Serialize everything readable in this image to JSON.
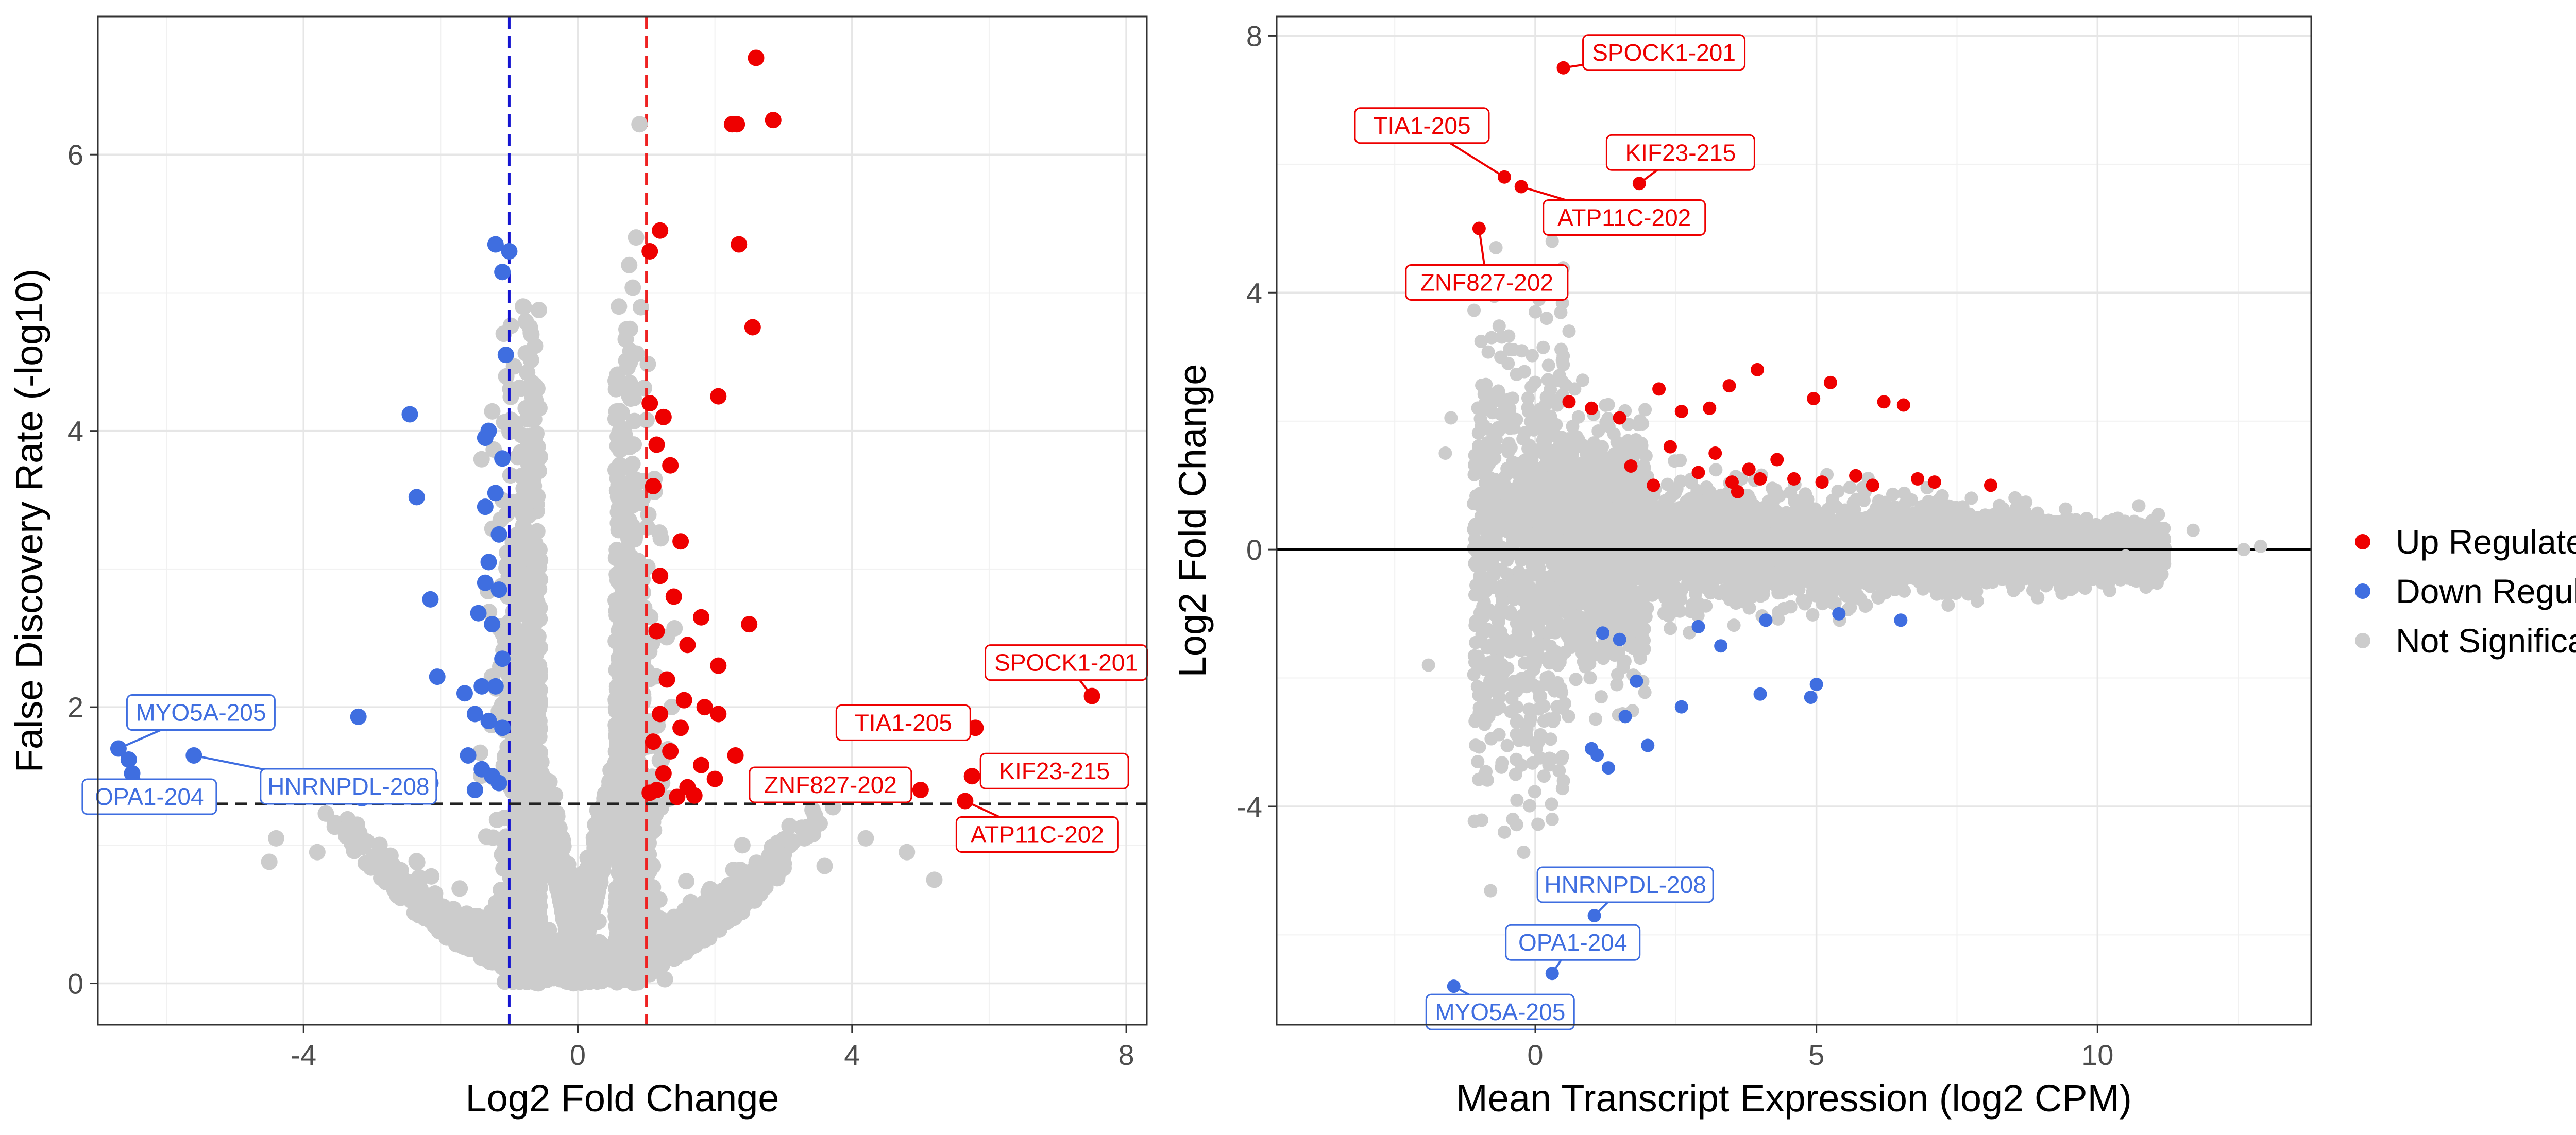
{
  "colors": {
    "up": "#ee0000",
    "down": "#3f6ee0",
    "ns": "#cccccc",
    "fc_left_line": "#1515d0",
    "fc_right_line": "#ee2222",
    "fdr_line": "#222222",
    "zero_line": "#000000"
  },
  "legend": {
    "items": [
      {
        "label": "Up Regulated",
        "color": "#ee0000"
      },
      {
        "label": "Down Regulated",
        "color": "#3f6ee0"
      },
      {
        "label": "Not Significant",
        "color": "#cccccc"
      }
    ]
  },
  "chart_data": [
    {
      "type": "scatter",
      "title": "",
      "xlabel": "Log2 Fold Change",
      "ylabel": "False Discovery Rate (-log10)",
      "xlim": [
        -7.0,
        8.3
      ],
      "ylim": [
        -0.3,
        7.0
      ],
      "xticks": [
        -4,
        0,
        4,
        8
      ],
      "yticks": [
        0,
        2,
        4,
        6
      ],
      "xtick_labels": [
        "-4",
        "0",
        "4",
        "8"
      ],
      "ytick_labels": [
        "0",
        "2",
        "4",
        "6"
      ],
      "reference_lines": [
        {
          "orientation": "vertical",
          "value": -1,
          "style": "dashed",
          "color": "#1515d0"
        },
        {
          "orientation": "vertical",
          "value": 1,
          "style": "dashed",
          "color": "#ee2222"
        },
        {
          "orientation": "horizontal",
          "value": 1.3,
          "style": "dashed",
          "color": "#222222"
        }
      ],
      "series": [
        {
          "name": "Up Regulated",
          "color": "#ee0000",
          "points": [
            [
              2.6,
              6.7
            ],
            [
              2.85,
              6.25
            ],
            [
              2.25,
              6.22
            ],
            [
              2.32,
              6.22
            ],
            [
              2.35,
              5.35
            ],
            [
              1.2,
              5.45
            ],
            [
              1.05,
              5.3
            ],
            [
              2.55,
              4.75
            ],
            [
              2.05,
              4.25
            ],
            [
              1.05,
              4.2
            ],
            [
              1.25,
              4.1
            ],
            [
              1.15,
              3.9
            ],
            [
              1.35,
              3.75
            ],
            [
              1.1,
              3.6
            ],
            [
              1.5,
              3.2
            ],
            [
              1.2,
              2.95
            ],
            [
              1.8,
              2.65
            ],
            [
              2.5,
              2.6
            ],
            [
              1.4,
              2.8
            ],
            [
              1.15,
              2.55
            ],
            [
              1.6,
              2.45
            ],
            [
              2.05,
              2.3
            ],
            [
              1.3,
              2.2
            ],
            [
              1.55,
              2.05
            ],
            [
              1.85,
              2.0
            ],
            [
              2.05,
              1.95
            ],
            [
              1.2,
              1.95
            ],
            [
              1.5,
              1.85
            ],
            [
              1.1,
              1.75
            ],
            [
              1.35,
              1.68
            ],
            [
              2.3,
              1.65
            ],
            [
              1.8,
              1.58
            ],
            [
              2.0,
              1.48
            ],
            [
              1.25,
              1.52
            ],
            [
              1.6,
              1.42
            ],
            [
              1.15,
              1.4
            ],
            [
              1.45,
              1.35
            ],
            [
              1.7,
              1.36
            ],
            [
              1.05,
              1.38
            ],
            [
              7.5,
              2.08
            ],
            [
              5.8,
              1.85
            ],
            [
              5.0,
              1.4
            ],
            [
              5.75,
              1.5
            ],
            [
              5.65,
              1.32
            ]
          ]
        },
        {
          "name": "Down Regulated",
          "color": "#3f6ee0",
          "points": [
            [
              -1.0,
              5.3
            ],
            [
              -1.2,
              5.35
            ],
            [
              -1.1,
              5.15
            ],
            [
              -1.05,
              4.55
            ],
            [
              -2.45,
              4.12
            ],
            [
              -1.3,
              4.0
            ],
            [
              -1.35,
              3.95
            ],
            [
              -1.1,
              3.8
            ],
            [
              -2.35,
              3.52
            ],
            [
              -1.2,
              3.55
            ],
            [
              -1.35,
              3.45
            ],
            [
              -1.15,
              3.25
            ],
            [
              -1.3,
              3.05
            ],
            [
              -1.35,
              2.9
            ],
            [
              -1.15,
              2.85
            ],
            [
              -2.15,
              2.78
            ],
            [
              -1.45,
              2.68
            ],
            [
              -1.25,
              2.6
            ],
            [
              -1.1,
              2.35
            ],
            [
              -2.05,
              2.22
            ],
            [
              -1.65,
              2.1
            ],
            [
              -1.4,
              2.15
            ],
            [
              -1.2,
              2.15
            ],
            [
              -1.5,
              1.95
            ],
            [
              -1.3,
              1.9
            ],
            [
              -1.1,
              1.85
            ],
            [
              -3.2,
              1.93
            ],
            [
              -1.6,
              1.65
            ],
            [
              -1.4,
              1.55
            ],
            [
              -1.25,
              1.5
            ],
            [
              -1.15,
              1.45
            ],
            [
              -1.5,
              1.4
            ],
            [
              -2.15,
              1.45
            ],
            [
              -2.3,
              1.38
            ],
            [
              -2.75,
              1.38
            ],
            [
              -3.15,
              1.34
            ],
            [
              -6.7,
              1.7
            ],
            [
              -6.55,
              1.62
            ],
            [
              -5.6,
              1.65
            ],
            [
              -6.5,
              1.52
            ]
          ]
        },
        {
          "name": "Not Significant",
          "color": "#cccccc",
          "points": [
            [
              0.9,
              6.22
            ],
            [
              0.85,
              5.4
            ],
            [
              0.75,
              5.2
            ],
            [
              0.6,
              4.9
            ],
            [
              -0.8,
              4.9
            ],
            [
              -0.7,
              4.75
            ],
            [
              -4.4,
              1.05
            ],
            [
              -4.5,
              0.88
            ],
            [
              -3.8,
              0.95
            ],
            [
              4.2,
              1.05
            ],
            [
              4.8,
              0.95
            ],
            [
              5.2,
              0.75
            ],
            [
              3.6,
              0.85
            ],
            [
              2.4,
              1.0
            ],
            [
              -2.9,
              0.95
            ],
            [
              0.0,
              0.02
            ]
          ]
        }
      ],
      "annotations": [
        {
          "label": "SPOCK1-201",
          "group": "up",
          "point": [
            7.5,
            2.08
          ]
        },
        {
          "label": "TIA1-205",
          "group": "up",
          "point": [
            5.8,
            1.85
          ]
        },
        {
          "label": "ZNF827-202",
          "group": "up",
          "point": [
            5.0,
            1.4
          ]
        },
        {
          "label": "KIF23-215",
          "group": "up",
          "point": [
            5.75,
            1.5
          ]
        },
        {
          "label": "ATP11C-202",
          "group": "up",
          "point": [
            5.65,
            1.32
          ]
        },
        {
          "label": "MYO5A-205",
          "group": "down",
          "point": [
            -6.7,
            1.7
          ]
        },
        {
          "label": "HNRNPDL-208",
          "group": "down",
          "point": [
            -5.6,
            1.65
          ]
        },
        {
          "label": "OPA1-204",
          "group": "down",
          "point": [
            -6.55,
            1.62
          ]
        }
      ]
    },
    {
      "type": "scatter",
      "title": "",
      "xlabel": "Mean Transcript Expression (log2 CPM)",
      "ylabel": "Log2 Fold Change",
      "xlim": [
        -4.6,
        13.8
      ],
      "ylim": [
        -7.4,
        8.3
      ],
      "xticks": [
        0,
        5,
        10
      ],
      "yticks": [
        -4,
        0,
        4,
        8
      ],
      "xtick_labels": [
        "0",
        "5",
        "10"
      ],
      "ytick_labels": [
        "-4",
        "0",
        "4",
        "8"
      ],
      "reference_lines": [
        {
          "orientation": "horizontal",
          "value": 0,
          "style": "solid",
          "color": "#000000"
        }
      ],
      "series": [
        {
          "name": "Up Regulated",
          "color": "#ee0000",
          "points": [
            [
              0.5,
              7.5
            ],
            [
              1.85,
              5.7
            ],
            [
              -0.55,
              5.8
            ],
            [
              -0.25,
              5.65
            ],
            [
              -1.0,
              5.0
            ],
            [
              3.95,
              2.8
            ],
            [
              3.45,
              2.55
            ],
            [
              5.25,
              2.6
            ],
            [
              4.95,
              2.35
            ],
            [
              6.2,
              2.3
            ],
            [
              6.55,
              2.25
            ],
            [
              2.2,
              2.5
            ],
            [
              3.1,
              2.2
            ],
            [
              2.6,
              2.15
            ],
            [
              1.0,
              2.2
            ],
            [
              1.5,
              2.05
            ],
            [
              0.6,
              2.3
            ],
            [
              4.3,
              1.4
            ],
            [
              2.4,
              1.6
            ],
            [
              3.2,
              1.5
            ],
            [
              2.9,
              1.2
            ],
            [
              1.7,
              1.3
            ],
            [
              3.5,
              1.05
            ],
            [
              4.6,
              1.1
            ],
            [
              5.1,
              1.05
            ],
            [
              5.7,
              1.15
            ],
            [
              6.0,
              1.0
            ],
            [
              6.8,
              1.1
            ],
            [
              7.1,
              1.05
            ],
            [
              8.1,
              1.0
            ],
            [
              4.0,
              1.1
            ],
            [
              3.8,
              1.25
            ],
            [
              2.1,
              1.0
            ],
            [
              3.6,
              0.9
            ]
          ]
        },
        {
          "name": "Down Regulated",
          "color": "#3f6ee0",
          "points": [
            [
              1.05,
              -5.7
            ],
            [
              0.3,
              -6.6
            ],
            [
              -1.45,
              -6.8
            ],
            [
              1.1,
              -3.2
            ],
            [
              1.3,
              -3.4
            ],
            [
              1.0,
              -3.1
            ],
            [
              1.6,
              -2.6
            ],
            [
              2.0,
              -3.05
            ],
            [
              2.6,
              -2.45
            ],
            [
              4.0,
              -2.25
            ],
            [
              4.9,
              -2.3
            ],
            [
              5.0,
              -2.1
            ],
            [
              1.8,
              -2.05
            ],
            [
              1.5,
              -1.4
            ],
            [
              2.9,
              -1.2
            ],
            [
              3.3,
              -1.5
            ],
            [
              4.1,
              -1.1
            ],
            [
              5.4,
              -1.0
            ],
            [
              6.5,
              -1.1
            ],
            [
              1.2,
              -1.3
            ]
          ]
        },
        {
          "name": "Not Significant",
          "color": "#cccccc",
          "points": [
            [
              -1.5,
              2.05
            ],
            [
              -1.6,
              1.5
            ],
            [
              -1.0,
              1.2
            ],
            [
              -0.9,
              0.5
            ],
            [
              -1.9,
              -1.8
            ],
            [
              -0.3,
              -1.5
            ],
            [
              -0.6,
              -1.0
            ],
            [
              -0.35,
              -2.2
            ],
            [
              -0.15,
              -2.8
            ],
            [
              0.25,
              -3.25
            ],
            [
              -0.35,
              -3.5
            ],
            [
              0.5,
              -3.6
            ],
            [
              -0.4,
              -4.2
            ],
            [
              -0.55,
              -4.4
            ],
            [
              0.3,
              -4.2
            ],
            [
              0.2,
              3.6
            ],
            [
              0.6,
              3.4
            ],
            [
              -0.1,
              4.1
            ],
            [
              0.0,
              3.7
            ],
            [
              -0.7,
              4.7
            ],
            [
              0.3,
              4.8
            ],
            [
              0.7,
              2.5
            ],
            [
              12.6,
              0.0
            ],
            [
              12.9,
              0.05
            ],
            [
              11.7,
              0.3
            ],
            [
              11.0,
              0.2
            ],
            [
              10.5,
              -0.1
            ]
          ]
        }
      ],
      "annotations": [
        {
          "label": "SPOCK1-201",
          "group": "up",
          "point": [
            0.5,
            7.5
          ]
        },
        {
          "label": "TIA1-205",
          "group": "up",
          "point": [
            -0.55,
            5.8
          ]
        },
        {
          "label": "KIF23-215",
          "group": "up",
          "point": [
            1.85,
            5.7
          ]
        },
        {
          "label": "ATP11C-202",
          "group": "up",
          "point": [
            -0.25,
            5.65
          ]
        },
        {
          "label": "ZNF827-202",
          "group": "up",
          "point": [
            -1.0,
            5.0
          ]
        },
        {
          "label": "HNRNPDL-208",
          "group": "down",
          "point": [
            1.05,
            -5.7
          ]
        },
        {
          "label": "OPA1-204",
          "group": "down",
          "point": [
            0.3,
            -6.6
          ]
        },
        {
          "label": "MYO5A-205",
          "group": "down",
          "point": [
            -1.45,
            -6.8
          ]
        }
      ]
    }
  ]
}
